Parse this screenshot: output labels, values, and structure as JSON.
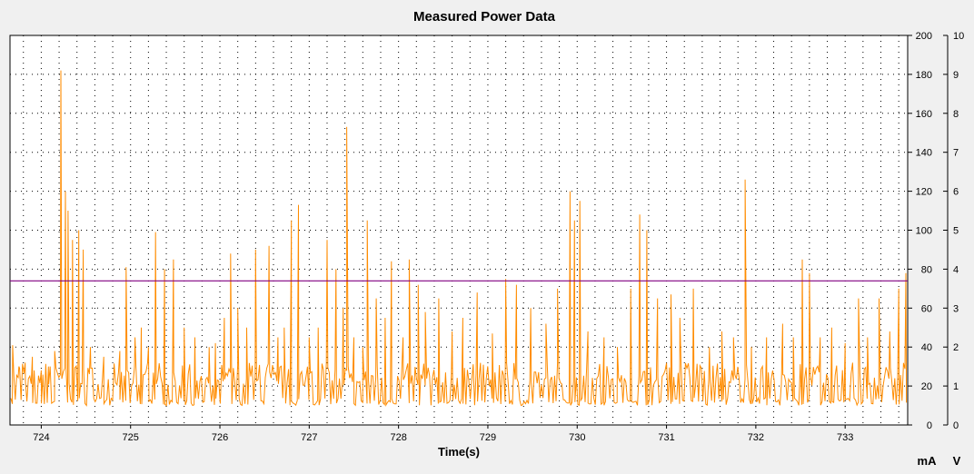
{
  "chart_data": {
    "type": "line",
    "title": "Measured Power Data",
    "xlabel": "Time(s)",
    "x_ticks": [
      724,
      725,
      726,
      727,
      728,
      729,
      730,
      731,
      732,
      733
    ],
    "xlim": [
      723.65,
      733.7
    ],
    "left_axis": {
      "unit": "mA",
      "ylim": [
        0,
        200
      ],
      "ticks": [
        0,
        20,
        40,
        60,
        80,
        100,
        120,
        140,
        160,
        180,
        200
      ]
    },
    "right_axis": {
      "unit": "V",
      "ylim": [
        0,
        10
      ],
      "ticks": [
        0,
        1,
        2,
        3,
        4,
        5,
        6,
        7,
        8,
        9,
        10
      ]
    },
    "grid": true,
    "series": [
      {
        "axis": "left",
        "color": "#ff8c00",
        "baseline_low": 10,
        "baseline_high": 32,
        "x": [
          723.68,
          723.75,
          723.82,
          723.9,
          724.0,
          724.08,
          724.15,
          724.22,
          724.27,
          724.3,
          724.35,
          724.42,
          724.47,
          724.55,
          724.7,
          724.88,
          724.95,
          725.05,
          725.12,
          725.2,
          725.28,
          725.38,
          725.48,
          725.6,
          725.72,
          725.88,
          725.95,
          726.05,
          726.12,
          726.2,
          726.3,
          726.4,
          726.55,
          726.65,
          726.72,
          726.8,
          726.88,
          727.0,
          727.1,
          727.2,
          727.3,
          727.38,
          727.42,
          727.5,
          727.6,
          727.65,
          727.75,
          727.85,
          727.92,
          728.05,
          728.12,
          728.22,
          728.3,
          728.45,
          728.6,
          728.72,
          728.88,
          729.05,
          729.2,
          729.32,
          729.48,
          729.65,
          729.78,
          729.92,
          729.97,
          730.03,
          730.12,
          730.3,
          730.45,
          730.6,
          730.7,
          730.78,
          730.9,
          731.05,
          731.15,
          731.3,
          731.48,
          731.62,
          731.75,
          731.88,
          731.95,
          732.12,
          732.3,
          732.42,
          732.52,
          732.6,
          732.72,
          732.85,
          733.0,
          733.15,
          733.25,
          733.38,
          733.5,
          733.6,
          733.68
        ],
        "y": [
          41,
          30,
          32,
          35,
          28,
          30,
          38,
          182,
          120,
          110,
          95,
          100,
          90,
          40,
          35,
          38,
          81,
          45,
          50,
          40,
          99,
          80,
          85,
          50,
          45,
          40,
          42,
          55,
          88,
          60,
          50,
          90,
          92,
          45,
          50,
          105,
          113,
          45,
          50,
          95,
          80,
          60,
          153,
          45,
          40,
          105,
          65,
          55,
          84,
          45,
          85,
          72,
          58,
          65,
          48,
          55,
          68,
          47,
          75,
          72,
          60,
          52,
          70,
          120,
          105,
          115,
          48,
          45,
          40,
          70,
          108,
          100,
          65,
          67,
          55,
          70,
          40,
          48,
          45,
          126,
          40,
          45,
          52,
          45,
          85,
          78,
          45,
          50,
          42,
          65,
          45,
          65,
          48,
          70,
          78
        ]
      },
      {
        "axis": "right",
        "color": "#800080",
        "x": [
          723.65,
          733.7
        ],
        "y": [
          3.7,
          3.7
        ]
      }
    ]
  }
}
